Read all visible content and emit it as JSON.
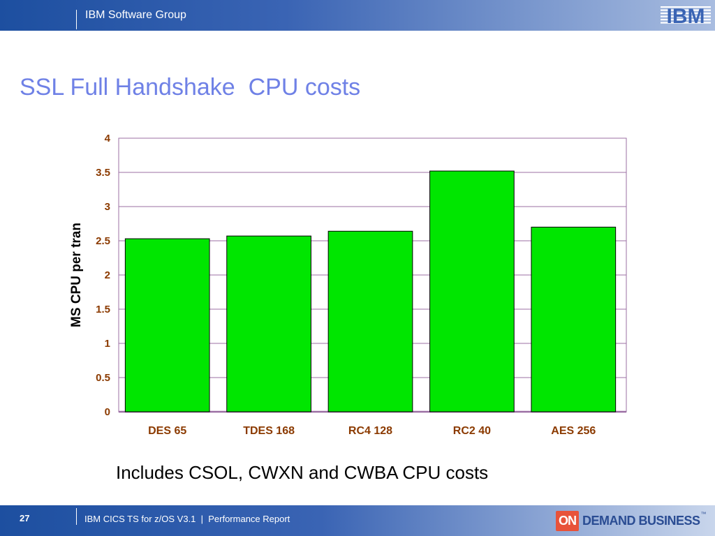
{
  "header": {
    "group_name": "IBM Software Group",
    "logo_text": "IBM"
  },
  "slide": {
    "title": "SSL Full Handshake  CPU costs",
    "caption": "Includes CSOL, CWXN and CWBA CPU costs"
  },
  "footer": {
    "page_number": "27",
    "text": "IBM CICS TS for z/OS V3.1  |  Performance Report",
    "logo_on": "ON",
    "logo_text": "DEMAND BUSINESS",
    "logo_tm": "™"
  },
  "colors": {
    "bar_fill": "#00e600",
    "bar_stroke": "#000000",
    "grid": "#9b6fa3",
    "tick_label": "#8b3a00",
    "category_label": "#8b3a00",
    "title": "#6f81e6"
  },
  "chart_data": {
    "type": "bar",
    "categories": [
      "DES 65",
      "TDES 168",
      "RC4 128",
      "RC2 40",
      "AES 256"
    ],
    "values": [
      2.53,
      2.57,
      2.64,
      3.52,
      2.7
    ],
    "ylabel": "MS CPU per tran",
    "ylim": [
      0,
      4
    ],
    "yticks": [
      "0",
      "0.5",
      "1",
      "1.5",
      "2",
      "2.5",
      "3",
      "3.5",
      "4"
    ],
    "grid": true,
    "legend": "none"
  }
}
